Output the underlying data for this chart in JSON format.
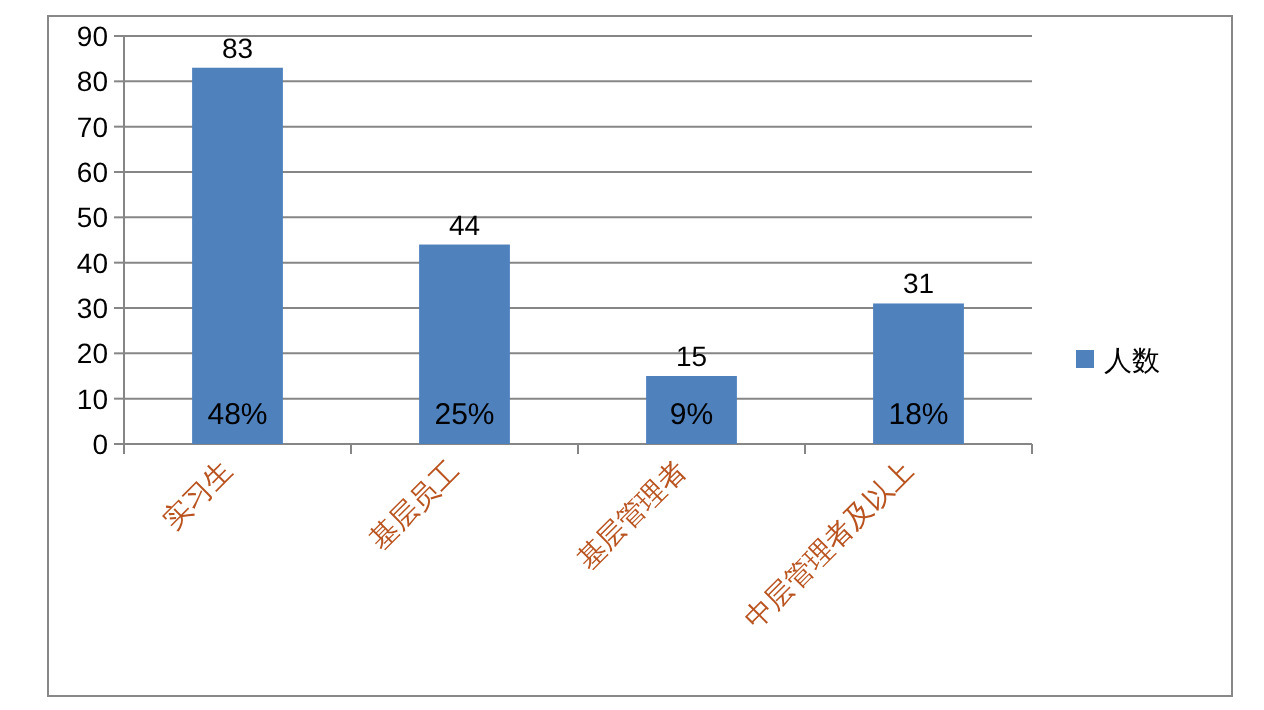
{
  "chart_data": {
    "type": "bar",
    "categories": [
      "实习生",
      "基层员工",
      "基层管理者",
      "中层管理者及以上"
    ],
    "series": [
      {
        "name": "人数",
        "color": "#4f81bd",
        "values": [
          83,
          44,
          15,
          31
        ]
      }
    ],
    "ylim": [
      0,
      90
    ],
    "yticks": [
      0,
      10,
      20,
      30,
      40,
      50,
      60,
      70,
      80,
      90
    ],
    "grid": "y",
    "legend": "right",
    "data_labels": true,
    "annotations": [
      "48%",
      "25%",
      "9%",
      "18%"
    ]
  }
}
